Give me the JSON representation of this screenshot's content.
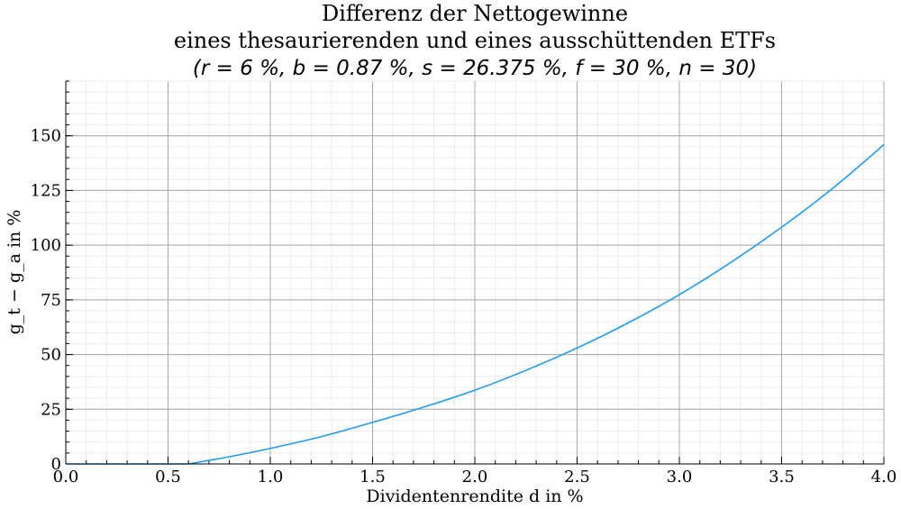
{
  "chart_data": {
    "type": "line",
    "title": [
      "Differenz der Nettogewinne",
      "eines thesaurierenden und eines ausschüttenden ETFs",
      "(r = 6 %, b = 0.87 %, s = 26.375 %, f = 30 %, n = 30)"
    ],
    "xlabel": "Dividentenrendite d in %",
    "ylabel": "g_t − g_a in %",
    "xlim": [
      0,
      4
    ],
    "ylim": [
      0,
      175
    ],
    "xticks": [
      "0.0",
      "0.5",
      "1.0",
      "1.5",
      "2.0",
      "2.5",
      "3.0",
      "3.5",
      "4.0"
    ],
    "yticks": [
      "0",
      "25",
      "50",
      "75",
      "100",
      "125",
      "150"
    ],
    "grid": true,
    "minor_grid": true,
    "series": [
      {
        "color": "#1f9cf0",
        "x": [
          0.0,
          0.5,
          0.6,
          0.8,
          1.0,
          1.25,
          1.5,
          1.75,
          2.0,
          2.25,
          2.5,
          2.75,
          3.0,
          3.25,
          3.5,
          3.75,
          4.0
        ],
        "y": [
          0,
          0,
          0,
          3.3,
          7.1,
          12.5,
          19,
          26,
          33.7,
          42.8,
          53,
          64.5,
          77.4,
          92,
          108.2,
          126,
          145.9
        ]
      }
    ]
  }
}
